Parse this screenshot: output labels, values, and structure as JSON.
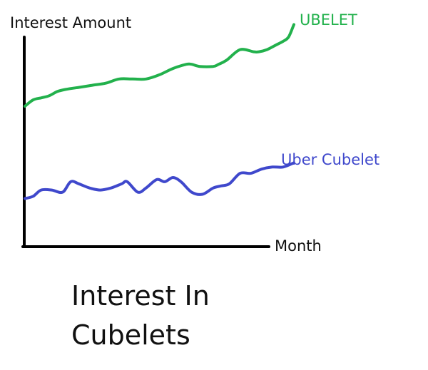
{
  "chart_data": {
    "type": "line",
    "title": "Interest In Cubelets",
    "xlabel": "Month",
    "ylabel": "Interest Amount",
    "grid": false,
    "legend": "inline labels at line ends",
    "ylim": [
      0,
      100
    ],
    "series": [
      {
        "name": "UBELET",
        "color": "#22b14c",
        "x": [
          0,
          0.03,
          0.06,
          0.09,
          0.12,
          0.15,
          0.2,
          0.25,
          0.3,
          0.35,
          0.4,
          0.45,
          0.5,
          0.55,
          0.6,
          0.62,
          0.65,
          0.7,
          0.72,
          0.75,
          0.8,
          0.85,
          0.87,
          0.9,
          0.93,
          0.96,
          0.98,
          1.0
        ],
        "y": [
          67,
          70,
          71,
          72,
          74,
          75,
          76,
          77,
          78,
          80,
          80,
          80,
          82,
          85,
          87,
          87,
          86,
          86,
          87,
          89,
          94,
          93,
          93,
          94,
          96,
          98,
          100,
          106
        ]
      },
      {
        "name": "Uber Cubelet",
        "color": "#3f48cc",
        "x": [
          0,
          0.03,
          0.06,
          0.1,
          0.14,
          0.17,
          0.2,
          0.24,
          0.28,
          0.32,
          0.36,
          0.38,
          0.42,
          0.45,
          0.49,
          0.52,
          0.55,
          0.58,
          0.62,
          0.66,
          0.7,
          0.73,
          0.76,
          0.8,
          0.84,
          0.88,
          0.92,
          0.96,
          1.0
        ],
        "y": [
          23,
          24,
          27,
          27,
          26,
          31,
          30,
          28,
          27,
          28,
          30,
          31,
          26,
          28,
          32,
          31,
          33,
          31,
          26,
          25,
          28,
          29,
          30,
          35,
          35,
          37,
          38,
          38,
          40
        ]
      }
    ]
  }
}
